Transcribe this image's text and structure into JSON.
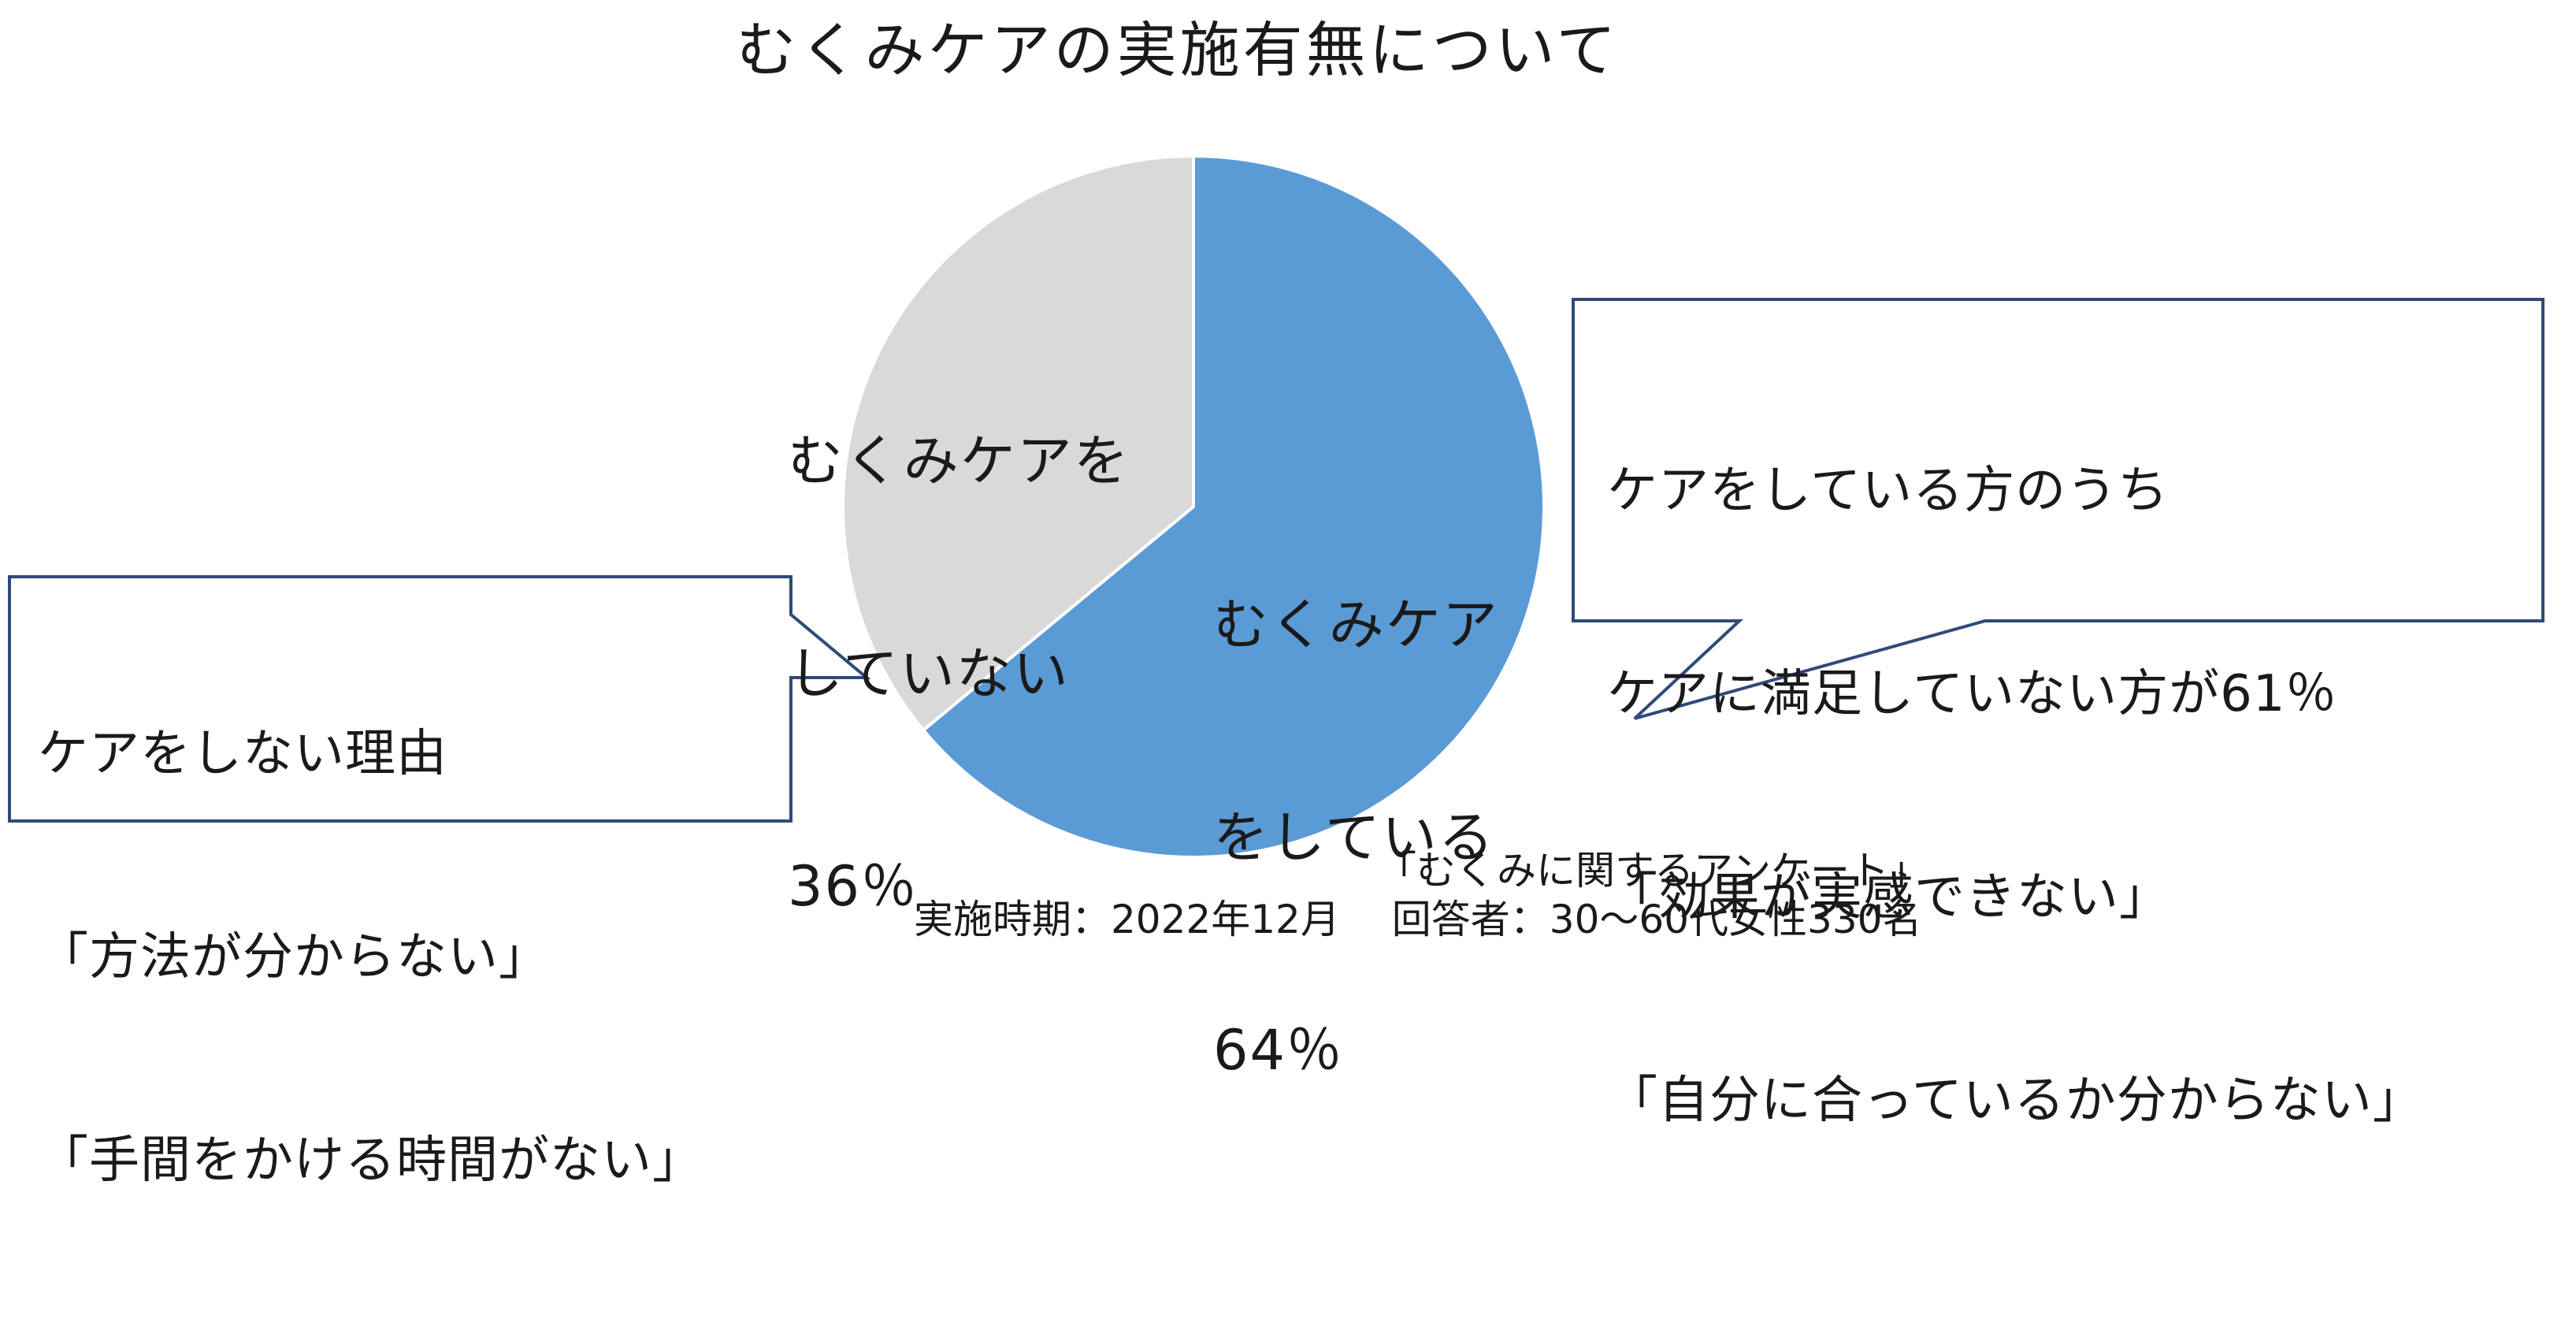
{
  "chart_data": {
    "type": "pie",
    "title": "むくみケアの実施有無について",
    "slices": [
      {
        "label_lines": [
          "むくみケア",
          "をしている"
        ],
        "value": 64,
        "value_label": "64％",
        "color": "#5b9bd5"
      },
      {
        "label_lines": [
          "むくみケアを",
          "していない"
        ],
        "value": 36,
        "value_label": "36％",
        "color": "#d9d9d9"
      }
    ],
    "start_angle": "12 o'clock",
    "direction": "clockwise",
    "slice_border_color": "#ffffff"
  },
  "callouts": {
    "right": {
      "lines": [
        "ケアをしている方のうち",
        "ケアに満足していない方が61％",
        "「効果が実感できない」",
        "「自分に合っているか分からない」"
      ],
      "border_color": "#2f4a7a"
    },
    "left": {
      "lines": [
        "ケアをしない理由",
        "「方法が分からない」",
        "「手間をかける時間がない」"
      ],
      "border_color": "#2f4a7a"
    }
  },
  "source": {
    "survey_name": "「むくみに関するアンケート」",
    "details": "実施時期：2022年12月　 回答者：30～60代女性330名"
  }
}
